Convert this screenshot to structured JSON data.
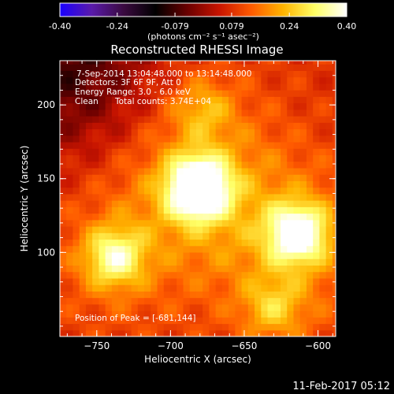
{
  "colorbar": {
    "ticks": [
      "-0.40",
      "-0.24",
      "-0.079",
      "0.079",
      "0.24",
      "0.40"
    ],
    "range": [
      -0.4,
      0.4
    ],
    "units_label": "(photons cm⁻² s⁻¹ asec⁻²)"
  },
  "colors": {
    "cmap": [
      "#1a00ff",
      "#5a1aaa",
      "#3a0a40",
      "#000000",
      "#6a0000",
      "#c81400",
      "#ff5a00",
      "#ffb400",
      "#ffff66",
      "#ffffff"
    ]
  },
  "header": {
    "title": "Reconstructed RHESSI Image",
    "time_range": "7-Sep-2014 13:04:48.000 to 13:14:48.000",
    "detectors": "Detectors: 3F 6F 9F, Att 0",
    "energy": "Energy Range: 3.0 - 6.0 keV",
    "clean_label": "Clean",
    "total_counts": "Total counts: 3.74E+04"
  },
  "peak_label": "Position of Peak = [-681,144]",
  "footer_date": "11-Feb-2017 05:12",
  "chart_data": {
    "type": "heatmap",
    "xlabel": "Heliocentric X (arcsec)",
    "ylabel": "Heliocentric Y (arcsec)",
    "xlim": [
      -775,
      -588
    ],
    "ylim": [
      43,
      230
    ],
    "x_ticks": [
      -750,
      -700,
      -650,
      -600
    ],
    "y_ticks": [
      100,
      150,
      200
    ],
    "peak": {
      "x": -681,
      "y": 144
    },
    "sources": [
      {
        "x": -681,
        "y": 144,
        "value": 0.4
      },
      {
        "x": -614,
        "y": 113,
        "value": 0.3
      },
      {
        "x": -738,
        "y": 97,
        "value": 0.22
      },
      {
        "x": -630,
        "y": 63,
        "value": 0.12
      },
      {
        "x": -678,
        "y": 198,
        "value": 0.1
      }
    ]
  }
}
